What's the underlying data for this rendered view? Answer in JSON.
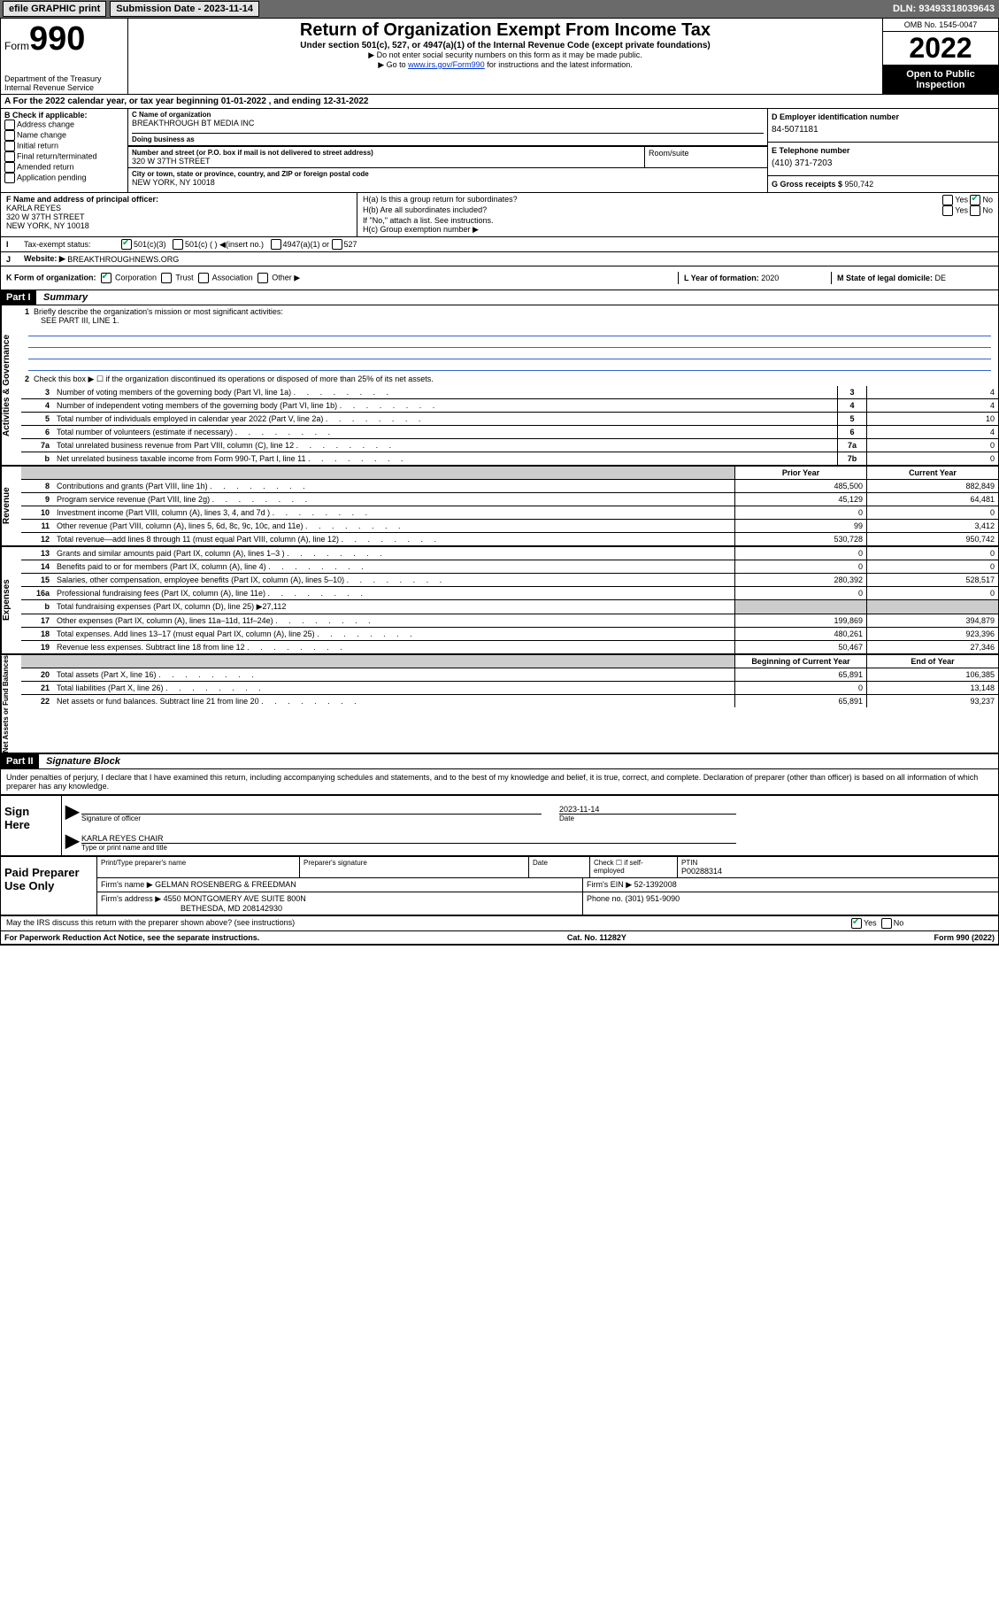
{
  "topbar": {
    "efile": "efile GRAPHIC print",
    "submission_label": "Submission Date - ",
    "submission_date": "2023-11-14",
    "dln_label": "DLN: ",
    "dln": "93493318039643"
  },
  "header": {
    "form_label": "Form",
    "form_number": "990",
    "dept": "Department of the Treasury",
    "irs": "Internal Revenue Service",
    "title": "Return of Organization Exempt From Income Tax",
    "subtitle": "Under section 501(c), 527, or 4947(a)(1) of the Internal Revenue Code (except private foundations)",
    "warn1": "▶ Do not enter social security numbers on this form as it may be made public.",
    "warn2_a": "▶ Go to ",
    "warn2_link": "www.irs.gov/Form990",
    "warn2_b": " for instructions and the latest information.",
    "omb": "OMB No. 1545-0047",
    "year": "2022",
    "open": "Open to Public Inspection"
  },
  "period": {
    "label_a": "For the 2022 calendar year, or tax year beginning ",
    "begin": "01-01-2022",
    "label_b": "   , and ending ",
    "end": "12-31-2022"
  },
  "boxB": {
    "label": "B Check if applicable:",
    "opts": [
      "Address change",
      "Name change",
      "Initial return",
      "Final return/terminated",
      "Amended return",
      "Application pending"
    ],
    "checked_idx": 5
  },
  "boxC": {
    "name_label": "C Name of organization",
    "name": "BREAKTHROUGH BT MEDIA INC",
    "dba_label": "Doing business as",
    "dba": "",
    "street_label": "Number and street (or P.O. box if mail is not delivered to street address)",
    "street": "320 W 37TH STREET",
    "room_label": "Room/suite",
    "room": "",
    "city_label": "City or town, state or province, country, and ZIP or foreign postal code",
    "city": "NEW YORK, NY  10018"
  },
  "boxD": {
    "label": "D Employer identification number",
    "val": "84-5071181"
  },
  "boxE": {
    "label": "E Telephone number",
    "val": "(410) 371-7203"
  },
  "boxG": {
    "label": "G Gross receipts $ ",
    "val": "950,742"
  },
  "boxF": {
    "label": "F Name and address of principal officer:",
    "name": "KARLA REYES",
    "addr1": "320 W 37TH STREET",
    "addr2": "NEW YORK, NY  10018"
  },
  "boxH": {
    "a_label": "H(a)  Is this a group return for subordinates?",
    "a_yes": "Yes",
    "a_no": "No",
    "b_label": "H(b)  Are all subordinates included?",
    "b_yes": "Yes",
    "b_no": "No",
    "b_note": "If \"No,\" attach a list. See instructions.",
    "c_label": "H(c)  Group exemption number ▶"
  },
  "boxI": {
    "label": "Tax-exempt status:",
    "opt1": "501(c)(3)",
    "opt2": "501(c) (  ) ◀(insert no.)",
    "opt3": "4947(a)(1) or",
    "opt4": "527"
  },
  "boxJ": {
    "label": "Website: ▶",
    "val": "BREAKTHROUGHNEWS.ORG"
  },
  "boxK": {
    "label": "K Form of organization:",
    "opts": [
      "Corporation",
      "Trust",
      "Association",
      "Other ▶"
    ]
  },
  "boxL": {
    "label": "L Year of formation: ",
    "val": "2020"
  },
  "boxM": {
    "label": "M State of legal domicile: ",
    "val": "DE"
  },
  "part1_label": "Part I",
  "part1_title": "Summary",
  "summary": {
    "q1_label": "Briefly describe the organization's mission or most significant activities:",
    "q1_val": "SEE PART III, LINE 1.",
    "q2": "Check this box ▶ ☐  if the organization discontinued its operations or disposed of more than 25% of its net assets.",
    "rows_a": [
      {
        "n": "3",
        "t": "Number of voting members of the governing body (Part VI, line 1a)",
        "box": "3",
        "v": "4"
      },
      {
        "n": "4",
        "t": "Number of independent voting members of the governing body (Part VI, line 1b)",
        "box": "4",
        "v": "4"
      },
      {
        "n": "5",
        "t": "Total number of individuals employed in calendar year 2022 (Part V, line 2a)",
        "box": "5",
        "v": "10"
      },
      {
        "n": "6",
        "t": "Total number of volunteers (estimate if necessary)",
        "box": "6",
        "v": "4"
      },
      {
        "n": "7a",
        "t": "Total unrelated business revenue from Part VIII, column (C), line 12",
        "box": "7a",
        "v": "0"
      },
      {
        "n": "b",
        "t": "Net unrelated business taxable income from Form 990-T, Part I, line 11",
        "box": "7b",
        "v": "0"
      }
    ],
    "prior_label": "Prior Year",
    "current_label": "Current Year",
    "beg_label": "Beginning of Current Year",
    "end_label": "End of Year",
    "rows_r": [
      {
        "n": "8",
        "t": "Contributions and grants (Part VIII, line 1h)",
        "p": "485,500",
        "c": "882,849"
      },
      {
        "n": "9",
        "t": "Program service revenue (Part VIII, line 2g)",
        "p": "45,129",
        "c": "64,481"
      },
      {
        "n": "10",
        "t": "Investment income (Part VIII, column (A), lines 3, 4, and 7d )",
        "p": "0",
        "c": "0"
      },
      {
        "n": "11",
        "t": "Other revenue (Part VIII, column (A), lines 5, 6d, 8c, 9c, 10c, and 11e)",
        "p": "99",
        "c": "3,412"
      },
      {
        "n": "12",
        "t": "Total revenue—add lines 8 through 11 (must equal Part VIII, column (A), line 12)",
        "p": "530,728",
        "c": "950,742"
      }
    ],
    "rows_e": [
      {
        "n": "13",
        "t": "Grants and similar amounts paid (Part IX, column (A), lines 1–3 )",
        "p": "0",
        "c": "0"
      },
      {
        "n": "14",
        "t": "Benefits paid to or for members (Part IX, column (A), line 4)",
        "p": "0",
        "c": "0"
      },
      {
        "n": "15",
        "t": "Salaries, other compensation, employee benefits (Part IX, column (A), lines 5–10)",
        "p": "280,392",
        "c": "528,517"
      },
      {
        "n": "16a",
        "t": "Professional fundraising fees (Part IX, column (A), line 11e)",
        "p": "0",
        "c": "0"
      }
    ],
    "row16b": {
      "n": "b",
      "t": "Total fundraising expenses (Part IX, column (D), line 25) ▶",
      "v": "27,112"
    },
    "rows_e2": [
      {
        "n": "17",
        "t": "Other expenses (Part IX, column (A), lines 11a–11d, 11f–24e)",
        "p": "199,869",
        "c": "394,879"
      },
      {
        "n": "18",
        "t": "Total expenses. Add lines 13–17 (must equal Part IX, column (A), line 25)",
        "p": "480,261",
        "c": "923,396"
      },
      {
        "n": "19",
        "t": "Revenue less expenses. Subtract line 18 from line 12",
        "p": "50,467",
        "c": "27,346"
      }
    ],
    "rows_n": [
      {
        "n": "20",
        "t": "Total assets (Part X, line 16)",
        "p": "65,891",
        "c": "106,385"
      },
      {
        "n": "21",
        "t": "Total liabilities (Part X, line 26)",
        "p": "0",
        "c": "13,148"
      },
      {
        "n": "22",
        "t": "Net assets or fund balances. Subtract line 21 from line 20",
        "p": "65,891",
        "c": "93,237"
      }
    ],
    "side_a": "Activities & Governance",
    "side_r": "Revenue",
    "side_e": "Expenses",
    "side_n": "Net Assets or Fund Balances"
  },
  "part2_label": "Part II",
  "part2_title": "Signature Block",
  "penalties": "Under penalties of perjury, I declare that I have examined this return, including accompanying schedules and statements, and to the best of my knowledge and belief, it is true, correct, and complete. Declaration of preparer (other than officer) is based on all information of which preparer has any knowledge.",
  "sign": {
    "here": "Sign Here",
    "sig_label": "Signature of officer",
    "date_label": "Date",
    "date": "2023-11-14",
    "name": "KARLA REYES  CHAIR",
    "name_label": "Type or print name and title"
  },
  "preparer": {
    "label": "Paid Preparer Use Only",
    "h1": "Print/Type preparer's name",
    "h2": "Preparer's signature",
    "h3": "Date",
    "h4a": "Check ☐ if self-employed",
    "h5_label": "PTIN",
    "h5": "P00288314",
    "firm_name_label": "Firm's name    ▶",
    "firm_name": "GELMAN ROSENBERG & FREEDMAN",
    "firm_ein_label": "Firm's EIN ▶",
    "firm_ein": "52-1392008",
    "firm_addr_label": "Firm's address ▶",
    "firm_addr1": "4550 MONTGOMERY AVE SUITE 800N",
    "firm_addr2": "BETHESDA, MD  208142930",
    "phone_label": "Phone no. ",
    "phone": "(301) 951-9090"
  },
  "discuss": {
    "q": "May the IRS discuss this return with the preparer shown above? (see instructions)",
    "yes": "Yes",
    "no": "No"
  },
  "footer": {
    "pra": "For Paperwork Reduction Act Notice, see the separate instructions.",
    "cat": "Cat. No. 11282Y",
    "form": "Form 990 (2022)"
  }
}
